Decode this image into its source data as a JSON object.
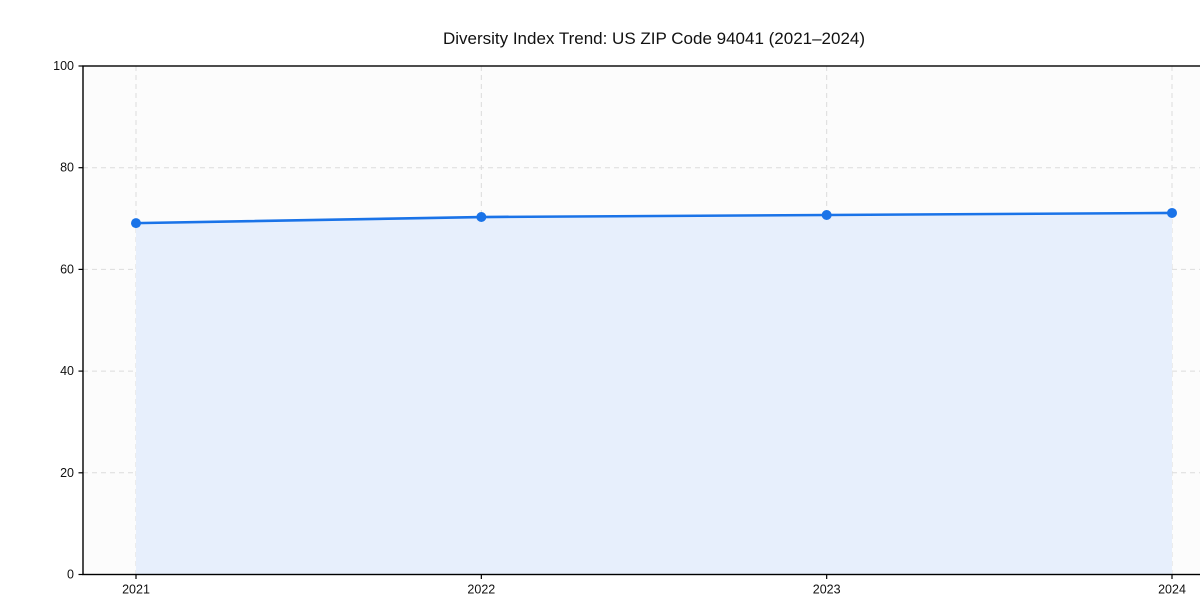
{
  "chart_data": {
    "type": "area",
    "title": "Diversity Index Trend: US ZIP Code 94041 (2021–2024)",
    "categories": [
      "2021",
      "2022",
      "2023",
      "2024"
    ],
    "series": [
      {
        "name": "Diversity Index",
        "values": [
          69.1,
          70.3,
          70.7,
          71.1
        ]
      }
    ],
    "xlabel": "",
    "ylabel": "",
    "ylim": [
      0,
      100
    ],
    "yticks": [
      0,
      20,
      40,
      60,
      80,
      100
    ],
    "grid": true,
    "legend": "none",
    "colors": {
      "line": "#1a73e8",
      "marker": "#1a73e8",
      "area_fill": "#e7effc",
      "plot_background": "#fcfcfc",
      "grid_line": "#dcdcdc",
      "spine": "#000000",
      "tick_label": "#111111",
      "title": "#111111"
    }
  }
}
